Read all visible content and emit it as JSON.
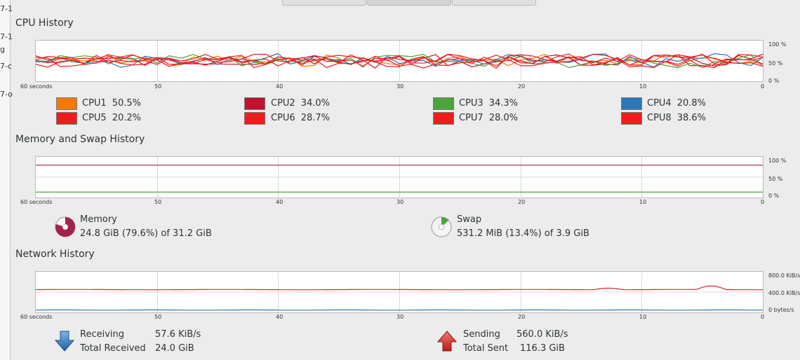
{
  "left_strip": [
    "7-1",
    "7-1",
    "g",
    "7-c",
    "7-o"
  ],
  "cpu_section": {
    "title": "CPU History",
    "y_ticks": [
      "100 %",
      "50 %",
      "0 %"
    ],
    "x_ticks": [
      "60 seconds",
      "50",
      "40",
      "30",
      "20",
      "10",
      "0"
    ],
    "cpus": [
      {
        "label": "CPU1",
        "value": "50.5%",
        "color": "#f57900"
      },
      {
        "label": "CPU2",
        "value": "34.0%",
        "color": "#c4112d"
      },
      {
        "label": "CPU3",
        "value": "34.3%",
        "color": "#4aa63b"
      },
      {
        "label": "CPU4",
        "value": "20.8%",
        "color": "#2b77b8"
      },
      {
        "label": "CPU5",
        "value": "20.2%",
        "color": "#ef1c1c"
      },
      {
        "label": "CPU6",
        "value": "28.7%",
        "color": "#ef1c1c"
      },
      {
        "label": "CPU7",
        "value": "28.0%",
        "color": "#ef1c1c"
      },
      {
        "label": "CPU8",
        "value": "38.6%",
        "color": "#ef1c1c"
      }
    ]
  },
  "memory_section": {
    "title": "Memory and Swap History",
    "y_ticks": [
      "100 %",
      "50 %",
      "0 %"
    ],
    "x_ticks": [
      "60 seconds",
      "50",
      "40",
      "30",
      "20",
      "10",
      "0"
    ],
    "memory": {
      "label": "Memory",
      "detail": "24.8 GiB (79.6%) of 31.2 GiB",
      "percent": 79.6,
      "color": "#a3214f"
    },
    "swap": {
      "label": "Swap",
      "detail": "531.2 MiB (13.4%) of 3.9 GiB",
      "percent": 13.4,
      "color": "#4aa63b"
    }
  },
  "network_section": {
    "title": "Network History",
    "y_ticks": [
      "800.0 KiB/s",
      "400.0 KiB/s",
      "0 bytes/s"
    ],
    "x_ticks": [
      "60 seconds",
      "50",
      "40",
      "30",
      "20",
      "10",
      "0"
    ],
    "receiving": {
      "label": "Receiving",
      "rate": "57.6 KiB/s",
      "total_label": "Total Received",
      "total": "24.0 GiB",
      "color": "#2b77b8"
    },
    "sending": {
      "label": "Sending",
      "rate": "560.0 KiB/s",
      "total_label": "Total Sent",
      "total": "116.3 GiB",
      "color": "#d62b2b"
    }
  }
}
